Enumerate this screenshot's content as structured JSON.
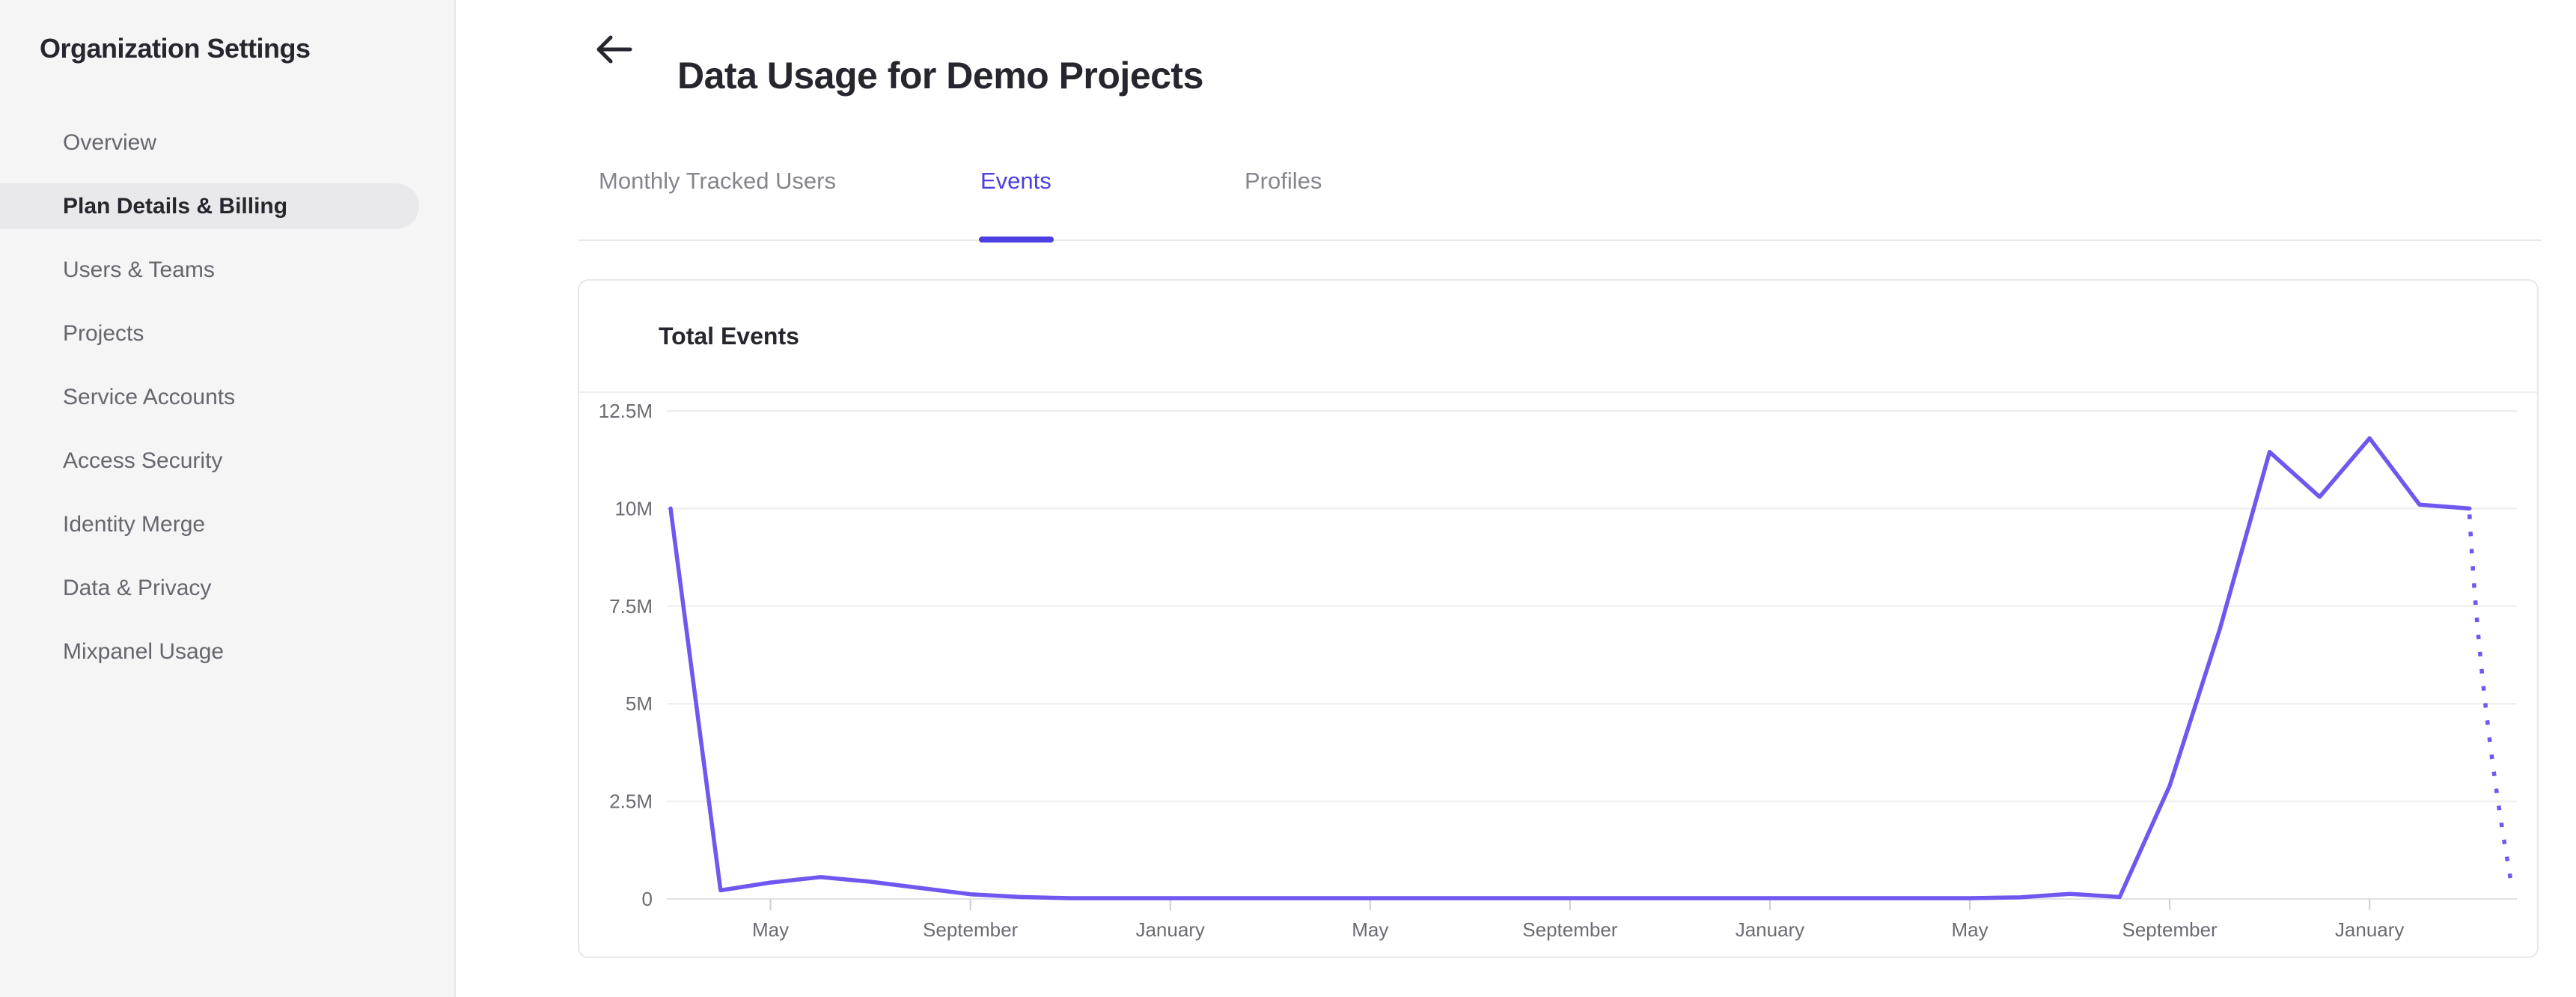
{
  "sidebar": {
    "title": "Organization Settings",
    "items": [
      {
        "label": "Overview",
        "active": false
      },
      {
        "label": "Plan Details & Billing",
        "active": true
      },
      {
        "label": "Users & Teams",
        "active": false
      },
      {
        "label": "Projects",
        "active": false
      },
      {
        "label": "Service Accounts",
        "active": false
      },
      {
        "label": "Access Security",
        "active": false
      },
      {
        "label": "Identity Merge",
        "active": false
      },
      {
        "label": "Data & Privacy",
        "active": false
      },
      {
        "label": "Mixpanel Usage",
        "active": false
      }
    ]
  },
  "header": {
    "title": "Data Usage for Demo Projects",
    "back_icon": "left-arrow-icon"
  },
  "tabs": [
    {
      "label": "Monthly Tracked Users",
      "active": false
    },
    {
      "label": "Events",
      "active": true
    },
    {
      "label": "Profiles",
      "active": false
    }
  ],
  "card": {
    "title": "Total Events"
  },
  "colors": {
    "accent_tab": "#4b3fe1",
    "line": "#6e58ef",
    "sidebar_bg": "#f5f5f6",
    "selected_item_bg": "#e9e9eb",
    "text_dark": "#26262e",
    "text_gray": "#66666e",
    "text_light_gray": "#85858d",
    "axis_text": "#6b6b73",
    "gridline": "#ededf0",
    "axis_line": "#e2e2e6",
    "tick": "#cdcdd3"
  },
  "chart_data": {
    "type": "line",
    "title": "Total Events",
    "unit": "events",
    "legend": false,
    "grid": true,
    "ylim_millions": [
      0,
      12.5
    ],
    "y_ticks": [
      {
        "label": "12.5M",
        "value_millions": 12.5
      },
      {
        "label": "10M",
        "value_millions": 10
      },
      {
        "label": "7.5M",
        "value_millions": 7.5
      },
      {
        "label": "5M",
        "value_millions": 5
      },
      {
        "label": "2.5M",
        "value_millions": 2.5
      },
      {
        "label": "0",
        "value_millions": 0
      }
    ],
    "x_description": "37 consecutive monthly points; labeled ticks every 4 months",
    "x_tick_labels": [
      "May",
      "September",
      "January",
      "May",
      "September",
      "January",
      "May",
      "September",
      "January"
    ],
    "x_tick_month_indices": [
      2,
      6,
      10,
      14,
      18,
      22,
      26,
      30,
      34
    ],
    "values_millions": [
      10.0,
      0.22,
      0.42,
      0.56,
      0.44,
      0.28,
      0.12,
      0.05,
      0.02,
      0.02,
      0.02,
      0.02,
      0.02,
      0.02,
      0.02,
      0.02,
      0.02,
      0.02,
      0.02,
      0.02,
      0.02,
      0.02,
      0.02,
      0.02,
      0.02,
      0.02,
      0.02,
      0.04,
      0.13,
      0.05,
      2.9,
      6.9,
      11.45,
      10.3,
      11.8,
      10.1,
      10.0
    ],
    "projection": {
      "style": "dotted",
      "from_month_index": 36,
      "end_x_months_after_last": 0.85,
      "end_value_millions": 0.3
    }
  }
}
